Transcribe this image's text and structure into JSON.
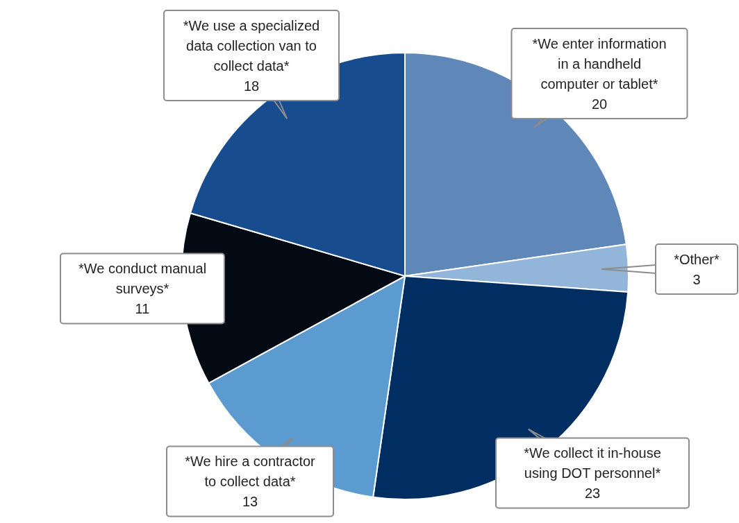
{
  "chart_data": {
    "type": "pie",
    "categories": [
      "*We enter information in a handheld computer or tablet*",
      "*Other*",
      "*We collect it in-house using DOT personnel*",
      "*We hire a contractor to collect data*",
      "*We conduct manual surveys*",
      "*We use a specialized data collection van to collect data*"
    ],
    "values": [
      20,
      3,
      23,
      13,
      11,
      18
    ],
    "colors": [
      "#5f87b8",
      "#93b5d9",
      "#002d62",
      "#5b9bd0",
      "#030a14",
      "#174c8f"
    ],
    "data_labels": true
  }
}
